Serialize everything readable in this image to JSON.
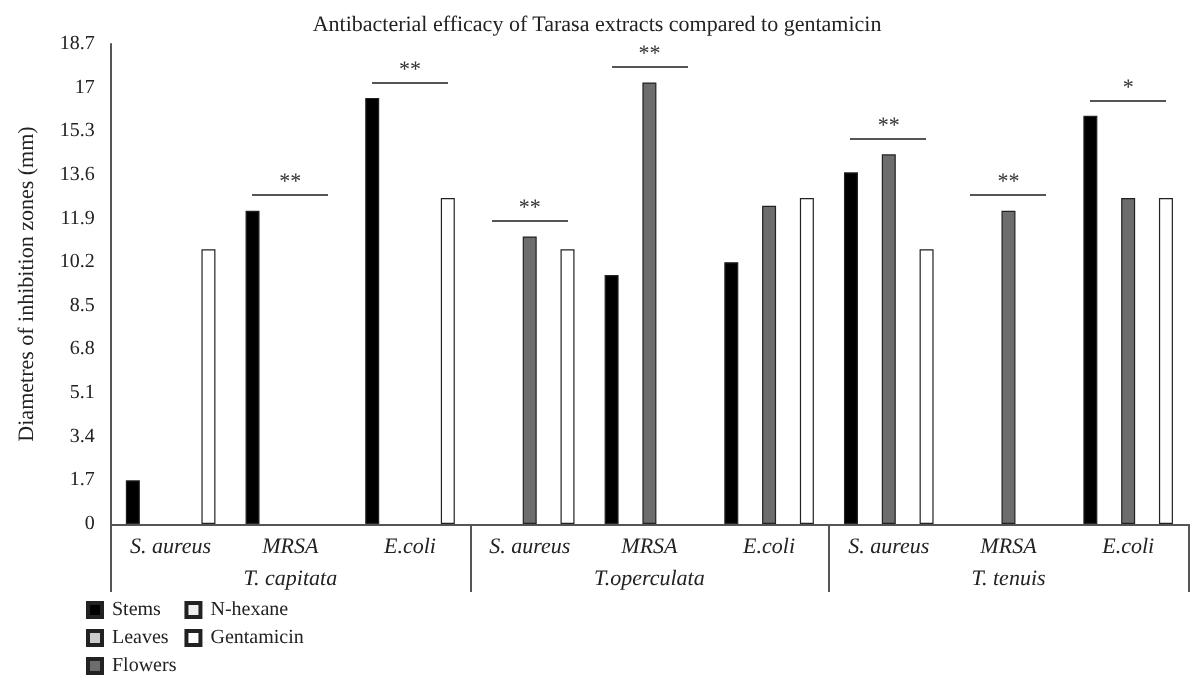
{
  "chart_data": {
    "type": "bar",
    "title": "Antibacterial efficacy of Tarasa extracts compared to gentamicin",
    "ylabel": "Diametres of inhibition zones (mm)",
    "categories": [
      "S. aureus",
      "MRSA",
      "E.coli",
      "S. aureus",
      "MRSA",
      "E.coli",
      "S. aureus",
      "MRSA",
      "E.coli"
    ],
    "series": [
      {
        "name": "Stems",
        "color": "#000000",
        "values": [
          1.7,
          12.2,
          16.6,
          null,
          9.7,
          10.2,
          13.7,
          null,
          15.9
        ]
      },
      {
        "name": "Leaves",
        "color": "#cccccc",
        "values": [
          null,
          null,
          null,
          null,
          null,
          null,
          null,
          null,
          null
        ]
      },
      {
        "name": "Flowers",
        "color": "#6d6d6d",
        "values": [
          null,
          null,
          null,
          11.2,
          17.2,
          12.4,
          14.4,
          12.2,
          12.7
        ]
      },
      {
        "name": "N-hexane",
        "color": "#eeeeee",
        "values": [
          null,
          null,
          null,
          null,
          null,
          null,
          null,
          null,
          null
        ]
      },
      {
        "name": "Gentamicin",
        "color": "#ffffff",
        "values": [
          10.7,
          null,
          12.7,
          10.7,
          null,
          12.7,
          10.7,
          null,
          12.7
        ]
      }
    ],
    "ylim": [
      0,
      18.7
    ],
    "yticks": [
      0,
      1.7,
      3.4,
      5.1,
      6.8,
      8.5,
      10.2,
      11.9,
      13.6,
      15.3,
      17,
      18.7
    ],
    "annotations": [
      "T. capitata",
      "T.operculata",
      "T. tenuis",
      "**",
      "**",
      "**",
      "**",
      "**",
      "**",
      "*"
    ],
    "legend": "bottom left",
    "grid": false
  }
}
